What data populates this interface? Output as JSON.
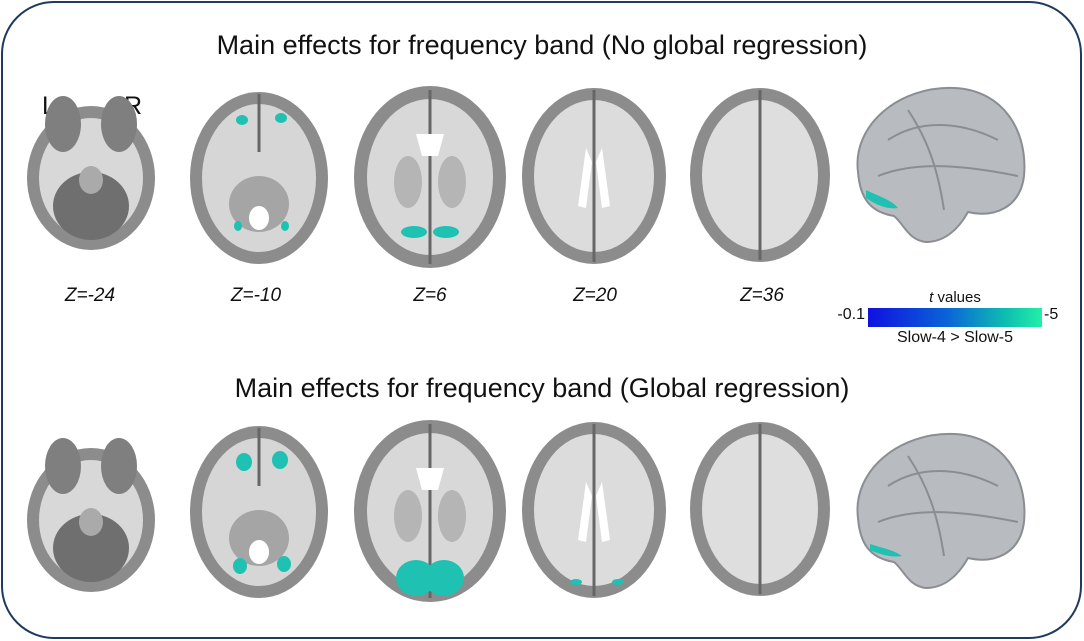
{
  "titles": {
    "top": "Main effects for frequency band (No global regression)",
    "bottom": "Main effects for frequency band (Global regression)"
  },
  "orientation": {
    "left": "L",
    "right": "R"
  },
  "slices": [
    {
      "label": "Z=-24",
      "z": -24
    },
    {
      "label": "Z=-10",
      "z": -10
    },
    {
      "label": "Z=6",
      "z": 6
    },
    {
      "label": "Z=20",
      "z": 20
    },
    {
      "label": "Z=36",
      "z": 36
    }
  ],
  "legend": {
    "title_var": "t",
    "title_rest": " values",
    "min_label": "-0.1",
    "max_label": "-5",
    "contrast": "Slow-4 > Slow-5",
    "colors": [
      "#1010e0",
      "#0a63d8",
      "#0fc0b0",
      "#21f0a6"
    ]
  },
  "colors": {
    "frame": "#1f3a5f",
    "brain": "#9a9a9a",
    "surface": "#b8bcc0",
    "cluster": "#1fc1b3"
  }
}
